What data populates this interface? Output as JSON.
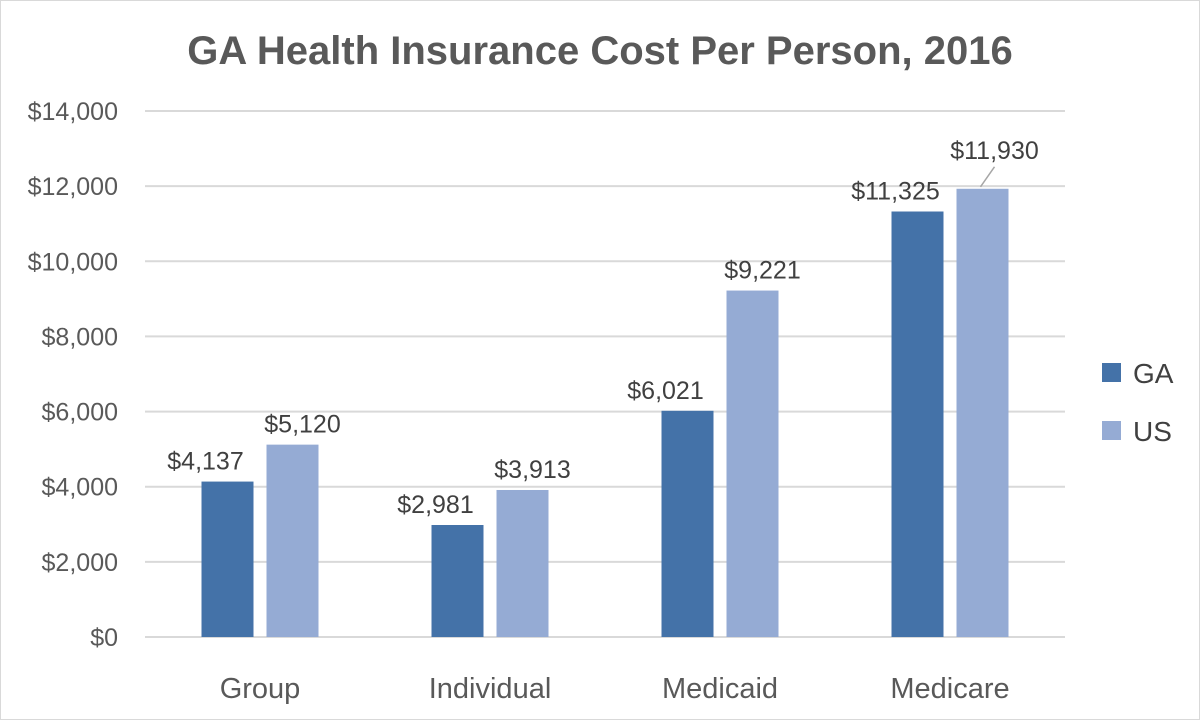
{
  "chart_data": {
    "type": "bar",
    "title": "GA Health Insurance Cost Per Person, 2016",
    "categories": [
      "Group",
      "Individual",
      "Medicaid",
      "Medicare"
    ],
    "series": [
      {
        "name": "GA",
        "values": [
          4137,
          2981,
          6021,
          11325
        ],
        "color": "#4472a8",
        "labels": [
          "$4,137",
          "$2,981",
          "$6,021",
          "$11,325"
        ]
      },
      {
        "name": "US",
        "values": [
          5120,
          3913,
          9221,
          11930
        ],
        "color": "#95abd4",
        "labels": [
          "$5,120",
          "$3,913",
          "$9,221",
          "$11,930"
        ]
      }
    ],
    "ylim": [
      0,
      14000
    ],
    "yticks": [
      0,
      2000,
      4000,
      6000,
      8000,
      10000,
      12000,
      14000
    ],
    "ytick_labels": [
      "$0",
      "$2,000",
      "$4,000",
      "$6,000",
      "$8,000",
      "$10,000",
      "$12,000",
      "$14,000"
    ],
    "xlabel": "",
    "ylabel": "",
    "grid": true,
    "legend_position": "right",
    "gridline_color": "#d9d9d9"
  }
}
